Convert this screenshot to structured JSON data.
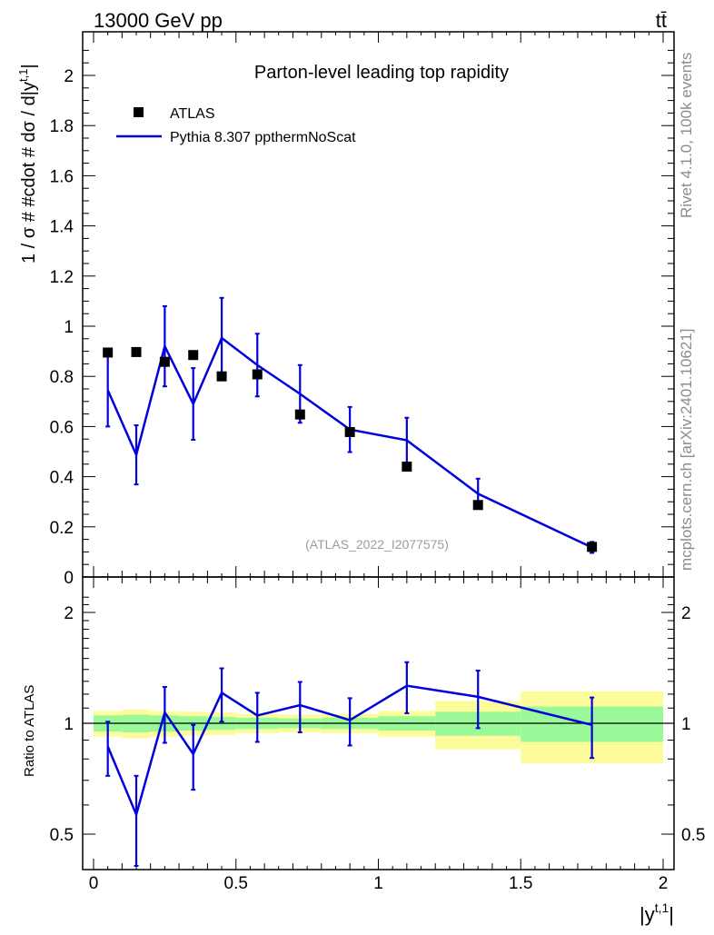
{
  "header": {
    "left": "13000 GeV pp",
    "right": "tt̄"
  },
  "side_labels": {
    "top": "Rivet 4.1.0,  100k events",
    "bottom": "mcplots.cern.ch [arXiv:2401.10621]"
  },
  "chart_data": {
    "type": "scatter",
    "title": "Parton-level leading top rapidity",
    "watermark": "(ATLAS_2022_I2077575)",
    "xlabel": "|y^{t,1}|",
    "ylabel": "1 / σ # #cdot # dσ / d|y^{t,1}|",
    "ratio_ylabel": "Ratio to ATLAS",
    "xlim": [
      0,
      2
    ],
    "ylim": [
      0,
      2.15
    ],
    "ratio_ylim": [
      0.35,
      2.35
    ],
    "x_ticks": [
      "0",
      "0.5",
      "1",
      "1.5",
      "2"
    ],
    "y_ticks": [
      "0",
      "0.2",
      "0.4",
      "0.6",
      "0.8",
      "1",
      "1.2",
      "1.4",
      "1.6",
      "1.8",
      "2"
    ],
    "ratio_ticks": [
      "0.5",
      "1",
      "2"
    ],
    "legend": {
      "data": "ATLAS",
      "mc": "Pythia 8.307 ppthermNoScat",
      "position": "top-left"
    },
    "bins": [
      {
        "lo": 0.0,
        "hi": 0.1,
        "x": 0.05,
        "data": 0.895,
        "mc": 0.745,
        "mc_err": 0.145,
        "ratio": 0.865,
        "ratio_err": 0.145,
        "band_in": 0.05,
        "band_out": 0.08
      },
      {
        "lo": 0.1,
        "hi": 0.2,
        "x": 0.15,
        "data": 0.897,
        "mc": 0.487,
        "mc_err": 0.118,
        "ratio": 0.565,
        "ratio_err": 0.155,
        "band_in": 0.055,
        "band_out": 0.09
      },
      {
        "lo": 0.2,
        "hi": 0.3,
        "x": 0.25,
        "data": 0.858,
        "mc": 0.92,
        "mc_err": 0.16,
        "ratio": 1.07,
        "ratio_err": 0.185,
        "band_in": 0.05,
        "band_out": 0.08
      },
      {
        "lo": 0.3,
        "hi": 0.4,
        "x": 0.35,
        "data": 0.885,
        "mc": 0.69,
        "mc_err": 0.143,
        "ratio": 0.825,
        "ratio_err": 0.165,
        "band_in": 0.045,
        "band_out": 0.075
      },
      {
        "lo": 0.4,
        "hi": 0.5,
        "x": 0.45,
        "data": 0.8,
        "mc": 0.953,
        "mc_err": 0.16,
        "ratio": 1.21,
        "ratio_err": 0.2,
        "band_in": 0.04,
        "band_out": 0.07
      },
      {
        "lo": 0.5,
        "hi": 0.65,
        "x": 0.575,
        "data": 0.808,
        "mc": 0.845,
        "mc_err": 0.125,
        "ratio": 1.05,
        "ratio_err": 0.16,
        "band_in": 0.035,
        "band_out": 0.06
      },
      {
        "lo": 0.65,
        "hi": 0.8,
        "x": 0.725,
        "data": 0.648,
        "mc": 0.73,
        "mc_err": 0.115,
        "ratio": 1.12,
        "ratio_err": 0.175,
        "band_in": 0.03,
        "band_out": 0.055
      },
      {
        "lo": 0.8,
        "hi": 1.0,
        "x": 0.9,
        "data": 0.578,
        "mc": 0.588,
        "mc_err": 0.09,
        "ratio": 1.02,
        "ratio_err": 0.15,
        "band_in": 0.035,
        "band_out": 0.06
      },
      {
        "lo": 1.0,
        "hi": 1.2,
        "x": 1.1,
        "data": 0.44,
        "mc": 0.545,
        "mc_err": 0.09,
        "ratio": 1.265,
        "ratio_err": 0.2,
        "band_in": 0.045,
        "band_out": 0.08
      },
      {
        "lo": 1.2,
        "hi": 1.5,
        "x": 1.35,
        "data": 0.287,
        "mc": 0.332,
        "mc_err": 0.06,
        "ratio": 1.18,
        "ratio_err": 0.21,
        "band_in": 0.075,
        "band_out": 0.15
      },
      {
        "lo": 1.5,
        "hi": 2.0,
        "x": 1.75,
        "data": 0.12,
        "mc": 0.118,
        "mc_err": 0.022,
        "ratio": 0.99,
        "ratio_err": 0.185,
        "band_in": 0.11,
        "band_out": 0.22
      }
    ],
    "colors": {
      "mc": "#0000dd",
      "data": "#000000",
      "band_in": "#99f999",
      "band_out": "#fcfc9a",
      "side_text": "#8c8c8c",
      "watermark": "#9c9c9c"
    }
  }
}
